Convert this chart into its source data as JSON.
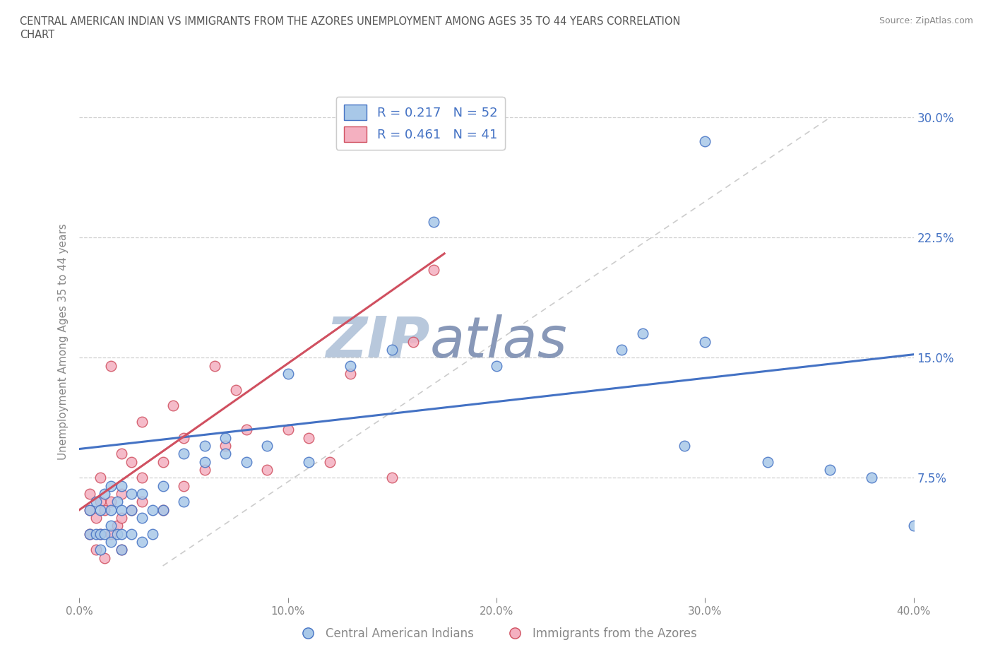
{
  "title_line1": "CENTRAL AMERICAN INDIAN VS IMMIGRANTS FROM THE AZORES UNEMPLOYMENT AMONG AGES 35 TO 44 YEARS CORRELATION",
  "title_line2": "CHART",
  "source_text": "Source: ZipAtlas.com",
  "ylabel": "Unemployment Among Ages 35 to 44 years",
  "xlim": [
    0.0,
    0.4
  ],
  "ylim": [
    0.0,
    0.32
  ],
  "xticks": [
    0.0,
    0.1,
    0.2,
    0.3,
    0.4
  ],
  "xticklabels": [
    "0.0%",
    "10.0%",
    "20.0%",
    "30.0%",
    "40.0%"
  ],
  "yticks": [
    0.0,
    0.075,
    0.15,
    0.225,
    0.3
  ],
  "yticklabels_right": [
    "",
    "7.5%",
    "15.0%",
    "22.5%",
    "30.0%"
  ],
  "blue_R": 0.217,
  "blue_N": 52,
  "pink_R": 0.461,
  "pink_N": 41,
  "legend_label_blue": "Central American Indians",
  "legend_label_pink": "Immigrants from the Azores",
  "watermark_zip": "ZIP",
  "watermark_atlas": "atlas",
  "blue_scatter_x": [
    0.005,
    0.005,
    0.008,
    0.008,
    0.01,
    0.01,
    0.01,
    0.012,
    0.012,
    0.015,
    0.015,
    0.015,
    0.015,
    0.018,
    0.018,
    0.02,
    0.02,
    0.02,
    0.02,
    0.025,
    0.025,
    0.025,
    0.03,
    0.03,
    0.03,
    0.035,
    0.035,
    0.04,
    0.04,
    0.05,
    0.05,
    0.06,
    0.06,
    0.07,
    0.07,
    0.08,
    0.09,
    0.1,
    0.11,
    0.13,
    0.15,
    0.17,
    0.2,
    0.26,
    0.27,
    0.29,
    0.3,
    0.3,
    0.33,
    0.36,
    0.38,
    0.4
  ],
  "blue_scatter_y": [
    0.04,
    0.055,
    0.04,
    0.06,
    0.03,
    0.04,
    0.055,
    0.04,
    0.065,
    0.035,
    0.045,
    0.055,
    0.07,
    0.04,
    0.06,
    0.03,
    0.04,
    0.055,
    0.07,
    0.04,
    0.055,
    0.065,
    0.035,
    0.05,
    0.065,
    0.04,
    0.055,
    0.055,
    0.07,
    0.06,
    0.09,
    0.085,
    0.095,
    0.09,
    0.1,
    0.085,
    0.095,
    0.14,
    0.085,
    0.145,
    0.155,
    0.235,
    0.145,
    0.155,
    0.165,
    0.095,
    0.16,
    0.285,
    0.085,
    0.08,
    0.075,
    0.045
  ],
  "pink_scatter_x": [
    0.005,
    0.005,
    0.005,
    0.008,
    0.008,
    0.01,
    0.01,
    0.01,
    0.012,
    0.012,
    0.015,
    0.015,
    0.015,
    0.018,
    0.02,
    0.02,
    0.02,
    0.02,
    0.025,
    0.025,
    0.03,
    0.03,
    0.03,
    0.04,
    0.04,
    0.045,
    0.05,
    0.05,
    0.06,
    0.065,
    0.07,
    0.075,
    0.08,
    0.09,
    0.1,
    0.11,
    0.12,
    0.13,
    0.15,
    0.16,
    0.17
  ],
  "pink_scatter_y": [
    0.04,
    0.055,
    0.065,
    0.03,
    0.05,
    0.04,
    0.06,
    0.075,
    0.025,
    0.055,
    0.04,
    0.06,
    0.145,
    0.045,
    0.03,
    0.05,
    0.065,
    0.09,
    0.055,
    0.085,
    0.06,
    0.075,
    0.11,
    0.055,
    0.085,
    0.12,
    0.07,
    0.1,
    0.08,
    0.145,
    0.095,
    0.13,
    0.105,
    0.08,
    0.105,
    0.1,
    0.085,
    0.14,
    0.075,
    0.16,
    0.205
  ],
  "blue_color": "#a8c8e8",
  "pink_color": "#f4b0c0",
  "blue_line_color": "#4472c4",
  "pink_line_color": "#d05060",
  "grid_color": "#d0d0d0",
  "background_color": "#ffffff",
  "title_color": "#555555",
  "tick_color": "#888888",
  "watermark_color_zip": "#b8c8dc",
  "watermark_color_atlas": "#8898b8"
}
